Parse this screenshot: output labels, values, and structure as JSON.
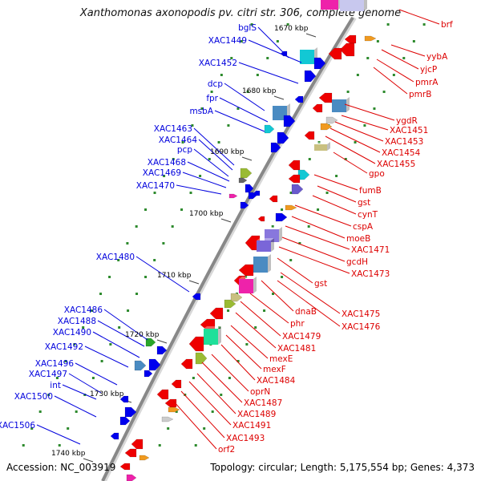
{
  "title": "Xanthomonas axonopodis pv. citri str. 306, complete genome",
  "footer": {
    "accession_label": "Accession:",
    "accession": "NC_003919",
    "topology_label": "Topology:",
    "topology": "circular",
    "length_label": "Length:",
    "length": "5,175,554 bp",
    "genes_label": "Genes:",
    "genes": "4,373"
  },
  "colors": {
    "left_labels": "#0000dd",
    "right_labels": "#dd0000",
    "backbone": "#888888",
    "tick": "#2d8a2d"
  },
  "position_markers": [
    "1670 kbp",
    "1680 kbp",
    "1690 kbp",
    "1700 kbp",
    "1710 kbp",
    "1720 kbp",
    "1730 kbp",
    "1740 kbp"
  ],
  "left_genes": [
    "bglS",
    "XAC1449",
    "XAC1452",
    "dcp",
    "fpr",
    "msbA",
    "XAC1463",
    "XAC1464",
    "pcp",
    "XAC1468",
    "XAC1469",
    "XAC1470",
    "XAC1480",
    "XAC1486",
    "XAC1488",
    "XAC1490",
    "XAC1492",
    "XAC1496",
    "XAC1497",
    "int",
    "XAC1500",
    "XAC1506"
  ],
  "right_genes": [
    "brf",
    "yybA",
    "yjcP",
    "pmrA",
    "pmrB",
    "ygdR",
    "XAC1451",
    "XAC1453",
    "XAC1454",
    "XAC1455",
    "gpo",
    "fumB",
    "gst",
    "cynT",
    "cspA",
    "moeB",
    "XAC1471",
    "gcdH",
    "XAC1473",
    "gst",
    "XAC1475",
    "XAC1476",
    "dnaB",
    "phr",
    "XAC1479",
    "XAC1481",
    "mexE",
    "mexF",
    "XAC1484",
    "oprN",
    "XAC1487",
    "XAC1489",
    "XAC1491",
    "XAC1493",
    "orf2"
  ]
}
